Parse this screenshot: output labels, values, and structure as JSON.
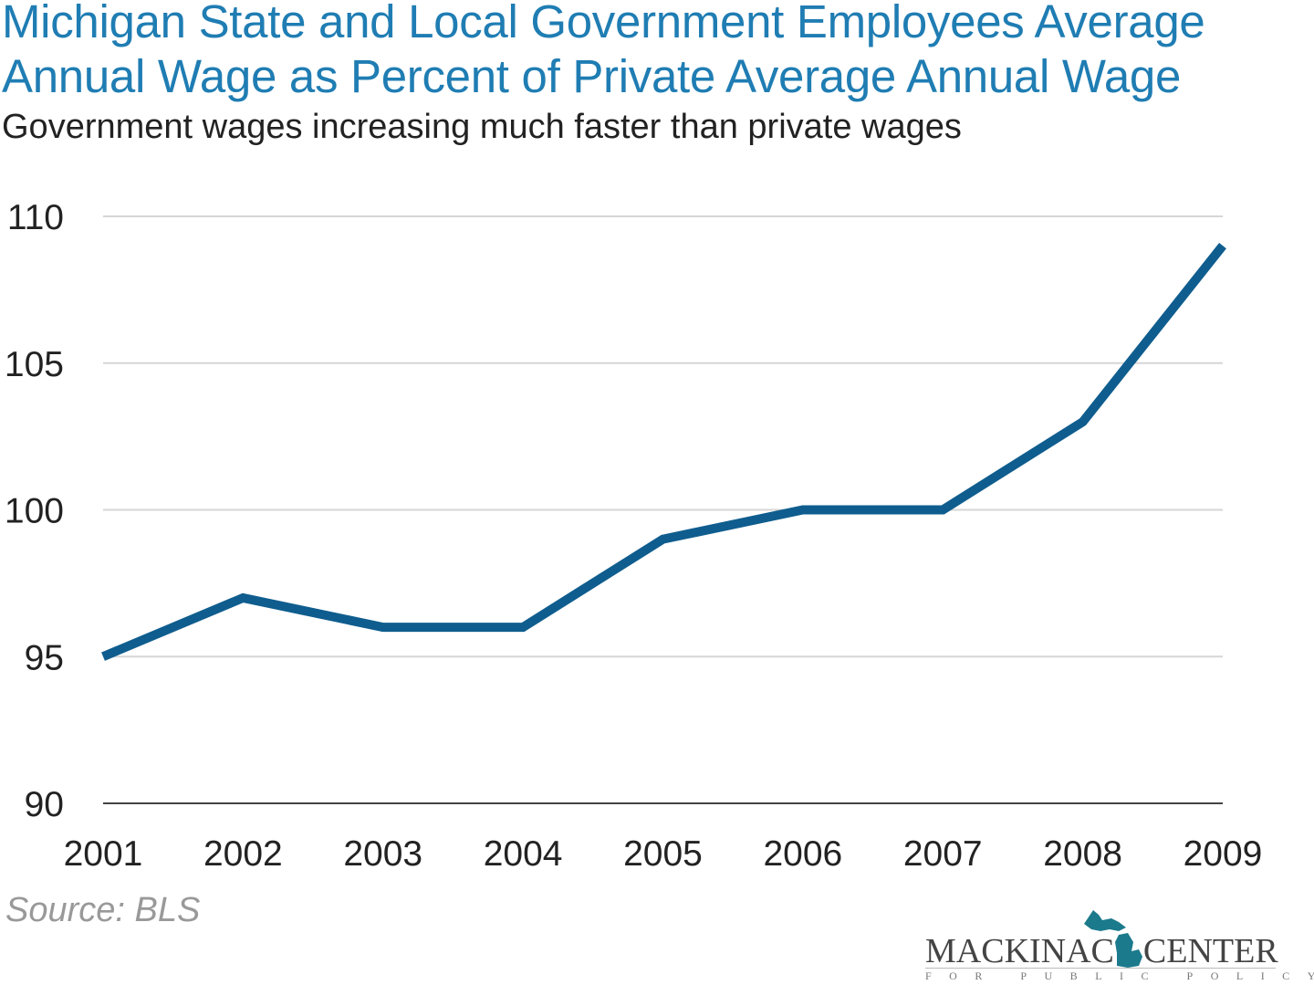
{
  "chart_data": {
    "type": "line",
    "title": "Michigan State and Local Government Employees Average Annual Wage as Percent of Private Average Annual Wage",
    "subtitle": "Government wages increasing much faster than private wages",
    "x": [
      "2001",
      "2002",
      "2003",
      "2004",
      "2005",
      "2006",
      "2007",
      "2008",
      "2009"
    ],
    "series": [
      {
        "values": [
          95,
          97,
          96,
          96,
          99,
          100,
          100,
          103,
          109
        ]
      }
    ],
    "ylim": [
      90,
      110
    ],
    "yticks": [
      90,
      95,
      100,
      105,
      110
    ],
    "grid": true,
    "line_color": "#0f5d8e",
    "source": "Source: BLS"
  },
  "logo": {
    "name": "MACKINAC CENTER",
    "left": "MACKINAC",
    "right": "CENTER",
    "sub": "FOR PUBLIC POLICY",
    "color": "#1b7a8c"
  }
}
